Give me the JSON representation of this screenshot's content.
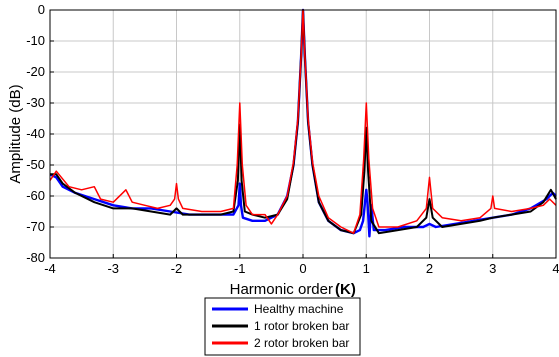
{
  "chart_data": {
    "type": "line",
    "title": "",
    "xlabel": "Harmonic order",
    "xlabel_symbol": "(K)",
    "ylabel": "Amplitude (dB)",
    "xlim": [
      -4,
      4
    ],
    "ylim": [
      -80,
      0
    ],
    "xticks": [
      -4,
      -3,
      -2,
      -1,
      0,
      1,
      2,
      3,
      4
    ],
    "yticks": [
      0,
      -10,
      -20,
      -30,
      -40,
      -50,
      -60,
      -70,
      -80
    ],
    "grid": true,
    "legend_position": "bottom-center",
    "series": [
      {
        "name": "Healthy machine",
        "color": "#0000ff",
        "points": [
          [
            -4.0,
            -53
          ],
          [
            -3.9,
            -54
          ],
          [
            -3.8,
            -57
          ],
          [
            -3.6,
            -59
          ],
          [
            -3.3,
            -61
          ],
          [
            -3.0,
            -63
          ],
          [
            -2.7,
            -64
          ],
          [
            -2.4,
            -64
          ],
          [
            -2.1,
            -65
          ],
          [
            -1.8,
            -66
          ],
          [
            -1.5,
            -66
          ],
          [
            -1.3,
            -66
          ],
          [
            -1.1,
            -66
          ],
          [
            -1.02,
            -63
          ],
          [
            -1.0,
            -56
          ],
          [
            -0.98,
            -63
          ],
          [
            -0.95,
            -67
          ],
          [
            -0.8,
            -68
          ],
          [
            -0.6,
            -68
          ],
          [
            -0.4,
            -66
          ],
          [
            -0.25,
            -60
          ],
          [
            -0.15,
            -50
          ],
          [
            -0.08,
            -36
          ],
          [
            -0.03,
            -15
          ],
          [
            0.0,
            0
          ],
          [
            0.03,
            -15
          ],
          [
            0.08,
            -36
          ],
          [
            0.15,
            -50
          ],
          [
            0.25,
            -62
          ],
          [
            0.4,
            -68
          ],
          [
            0.6,
            -71
          ],
          [
            0.8,
            -72
          ],
          [
            0.9,
            -71
          ],
          [
            0.95,
            -68
          ],
          [
            0.98,
            -62
          ],
          [
            1.0,
            -58
          ],
          [
            1.02,
            -62
          ],
          [
            1.05,
            -73
          ],
          [
            1.08,
            -63
          ],
          [
            1.12,
            -71
          ],
          [
            1.3,
            -71
          ],
          [
            1.6,
            -70
          ],
          [
            1.9,
            -70
          ],
          [
            2.0,
            -69
          ],
          [
            2.1,
            -70
          ],
          [
            2.4,
            -69
          ],
          [
            2.7,
            -68
          ],
          [
            3.0,
            -67
          ],
          [
            3.3,
            -66
          ],
          [
            3.6,
            -64
          ],
          [
            3.85,
            -61
          ],
          [
            3.95,
            -59
          ],
          [
            4.0,
            -60
          ]
        ]
      },
      {
        "name": "1 rotor broken bar",
        "color": "#000000",
        "points": [
          [
            -4.0,
            -53
          ],
          [
            -3.9,
            -53
          ],
          [
            -3.8,
            -56
          ],
          [
            -3.6,
            -59
          ],
          [
            -3.3,
            -62
          ],
          [
            -3.0,
            -64
          ],
          [
            -2.7,
            -64
          ],
          [
            -2.4,
            -65
          ],
          [
            -2.1,
            -66
          ],
          [
            -2.0,
            -64
          ],
          [
            -1.9,
            -66
          ],
          [
            -1.6,
            -66
          ],
          [
            -1.3,
            -66
          ],
          [
            -1.1,
            -65
          ],
          [
            -1.03,
            -55
          ],
          [
            -1.0,
            -37
          ],
          [
            -0.97,
            -55
          ],
          [
            -0.92,
            -65
          ],
          [
            -0.8,
            -66
          ],
          [
            -0.6,
            -67
          ],
          [
            -0.4,
            -66
          ],
          [
            -0.25,
            -61
          ],
          [
            -0.15,
            -50
          ],
          [
            -0.08,
            -36
          ],
          [
            -0.03,
            -15
          ],
          [
            0.0,
            0
          ],
          [
            0.03,
            -15
          ],
          [
            0.08,
            -36
          ],
          [
            0.15,
            -50
          ],
          [
            0.25,
            -62
          ],
          [
            0.4,
            -68
          ],
          [
            0.6,
            -71
          ],
          [
            0.8,
            -72
          ],
          [
            0.92,
            -66
          ],
          [
            0.97,
            -52
          ],
          [
            1.0,
            -38
          ],
          [
            1.03,
            -52
          ],
          [
            1.08,
            -68
          ],
          [
            1.2,
            -72
          ],
          [
            1.5,
            -71
          ],
          [
            1.8,
            -70
          ],
          [
            1.95,
            -67
          ],
          [
            2.0,
            -61
          ],
          [
            2.05,
            -67
          ],
          [
            2.2,
            -70
          ],
          [
            2.5,
            -69
          ],
          [
            2.8,
            -68
          ],
          [
            3.0,
            -67
          ],
          [
            3.3,
            -66
          ],
          [
            3.6,
            -65
          ],
          [
            3.8,
            -62
          ],
          [
            3.92,
            -58
          ],
          [
            4.0,
            -61
          ]
        ]
      },
      {
        "name": "2 rotor broken bar",
        "color": "#ff0000",
        "points": [
          [
            -4.0,
            -55
          ],
          [
            -3.9,
            -52
          ],
          [
            -3.7,
            -57
          ],
          [
            -3.5,
            -58
          ],
          [
            -3.3,
            -57
          ],
          [
            -3.2,
            -61
          ],
          [
            -3.0,
            -62
          ],
          [
            -2.8,
            -58
          ],
          [
            -2.7,
            -62
          ],
          [
            -2.5,
            -63
          ],
          [
            -2.3,
            -64
          ],
          [
            -2.1,
            -63
          ],
          [
            -2.03,
            -61
          ],
          [
            -2.0,
            -56
          ],
          [
            -1.97,
            -61
          ],
          [
            -1.9,
            -64
          ],
          [
            -1.6,
            -65
          ],
          [
            -1.3,
            -65
          ],
          [
            -1.1,
            -64
          ],
          [
            -1.04,
            -50
          ],
          [
            -1.0,
            -30
          ],
          [
            -0.96,
            -50
          ],
          [
            -0.9,
            -63
          ],
          [
            -0.8,
            -66
          ],
          [
            -0.6,
            -66
          ],
          [
            -0.5,
            -69
          ],
          [
            -0.4,
            -66
          ],
          [
            -0.25,
            -60
          ],
          [
            -0.15,
            -49
          ],
          [
            -0.08,
            -35
          ],
          [
            -0.03,
            -15
          ],
          [
            0.0,
            0
          ],
          [
            0.03,
            -15
          ],
          [
            0.08,
            -35
          ],
          [
            0.15,
            -49
          ],
          [
            0.25,
            -60
          ],
          [
            0.4,
            -67
          ],
          [
            0.6,
            -70
          ],
          [
            0.8,
            -72
          ],
          [
            0.9,
            -66
          ],
          [
            0.96,
            -48
          ],
          [
            1.0,
            -30
          ],
          [
            1.04,
            -48
          ],
          [
            1.1,
            -64
          ],
          [
            1.2,
            -70
          ],
          [
            1.5,
            -70
          ],
          [
            1.8,
            -68
          ],
          [
            1.95,
            -64
          ],
          [
            2.0,
            -54
          ],
          [
            2.05,
            -64
          ],
          [
            2.2,
            -67
          ],
          [
            2.5,
            -68
          ],
          [
            2.8,
            -67
          ],
          [
            2.97,
            -64
          ],
          [
            3.0,
            -60
          ],
          [
            3.03,
            -64
          ],
          [
            3.3,
            -65
          ],
          [
            3.6,
            -64
          ],
          [
            3.8,
            -63
          ],
          [
            3.9,
            -61
          ],
          [
            4.0,
            -63
          ]
        ]
      }
    ]
  }
}
